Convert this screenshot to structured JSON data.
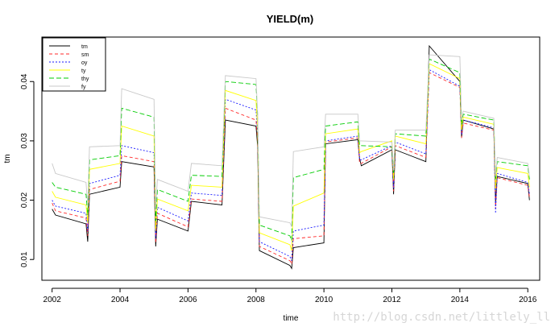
{
  "chart_data": {
    "type": "line",
    "title": "YIELD(m)",
    "xlabel": "time",
    "ylabel": "tm",
    "xlim": [
      2001.7,
      2016.35
    ],
    "ylim": [
      0.0065,
      0.0475
    ],
    "x_ticks": [
      2002,
      2004,
      2006,
      2008,
      2010,
      2012,
      2014,
      2016
    ],
    "y_ticks": [
      0.01,
      0.02,
      0.03,
      0.04
    ],
    "legend_position": "top-left",
    "grid": false,
    "series": [
      {
        "name": "tm",
        "color": "#000000",
        "dash": "",
        "values": [
          [
            2002.0,
            0.0185
          ],
          [
            2002.1,
            0.0175
          ],
          [
            2003.0,
            0.016
          ],
          [
            2003.05,
            0.013
          ],
          [
            2003.1,
            0.021
          ],
          [
            2004.0,
            0.0222
          ],
          [
            2004.05,
            0.0265
          ],
          [
            2005.0,
            0.0256
          ],
          [
            2005.05,
            0.0122
          ],
          [
            2005.1,
            0.0168
          ],
          [
            2006.0,
            0.0148
          ],
          [
            2006.1,
            0.0198
          ],
          [
            2007.0,
            0.0192
          ],
          [
            2007.1,
            0.0335
          ],
          [
            2008.0,
            0.0325
          ],
          [
            2008.05,
            0.029
          ],
          [
            2008.1,
            0.0115
          ],
          [
            2009.0,
            0.009
          ],
          [
            2009.05,
            0.0085
          ],
          [
            2009.1,
            0.012
          ],
          [
            2010.0,
            0.0128
          ],
          [
            2010.05,
            0.0295
          ],
          [
            2011.0,
            0.0302
          ],
          [
            2011.05,
            0.027
          ],
          [
            2011.1,
            0.0258
          ],
          [
            2012.0,
            0.0285
          ],
          [
            2012.05,
            0.021
          ],
          [
            2012.1,
            0.0285
          ],
          [
            2013.0,
            0.0265
          ],
          [
            2013.1,
            0.046
          ],
          [
            2014.0,
            0.04
          ],
          [
            2014.05,
            0.0305
          ],
          [
            2014.1,
            0.0335
          ],
          [
            2015.0,
            0.032
          ],
          [
            2015.05,
            0.0195
          ],
          [
            2015.1,
            0.024
          ],
          [
            2016.0,
            0.0228
          ],
          [
            2016.05,
            0.02
          ]
        ]
      },
      {
        "name": "sm",
        "color": "#ff2a2a",
        "dash": "4,3",
        "values": [
          [
            2002.0,
            0.0195
          ],
          [
            2002.1,
            0.0182
          ],
          [
            2003.0,
            0.017
          ],
          [
            2003.05,
            0.014
          ],
          [
            2003.1,
            0.0218
          ],
          [
            2004.0,
            0.0232
          ],
          [
            2004.05,
            0.0275
          ],
          [
            2005.0,
            0.0265
          ],
          [
            2005.05,
            0.0128
          ],
          [
            2005.1,
            0.0178
          ],
          [
            2006.0,
            0.0155
          ],
          [
            2006.1,
            0.0202
          ],
          [
            2007.0,
            0.0198
          ],
          [
            2007.1,
            0.0355
          ],
          [
            2008.0,
            0.0335
          ],
          [
            2008.05,
            0.03
          ],
          [
            2008.1,
            0.0122
          ],
          [
            2009.0,
            0.0098
          ],
          [
            2009.05,
            0.0092
          ],
          [
            2009.1,
            0.0135
          ],
          [
            2010.0,
            0.014
          ],
          [
            2010.05,
            0.0298
          ],
          [
            2011.0,
            0.0305
          ],
          [
            2011.05,
            0.0262
          ],
          [
            2011.1,
            0.0262
          ],
          [
            2012.0,
            0.029
          ],
          [
            2012.05,
            0.0215
          ],
          [
            2012.1,
            0.0292
          ],
          [
            2013.0,
            0.0272
          ],
          [
            2013.1,
            0.0415
          ],
          [
            2014.0,
            0.039
          ],
          [
            2014.05,
            0.0305
          ],
          [
            2014.1,
            0.033
          ],
          [
            2015.0,
            0.0318
          ],
          [
            2015.05,
            0.0185
          ],
          [
            2015.1,
            0.0238
          ],
          [
            2016.0,
            0.0225
          ],
          [
            2016.05,
            0.0205
          ]
        ]
      },
      {
        "name": "oy",
        "color": "#1a1aff",
        "dash": "2,2",
        "values": [
          [
            2002.0,
            0.02
          ],
          [
            2002.1,
            0.019
          ],
          [
            2003.0,
            0.0178
          ],
          [
            2003.05,
            0.0148
          ],
          [
            2003.1,
            0.0228
          ],
          [
            2004.0,
            0.0242
          ],
          [
            2004.05,
            0.0292
          ],
          [
            2005.0,
            0.028
          ],
          [
            2005.05,
            0.0135
          ],
          [
            2005.1,
            0.0188
          ],
          [
            2006.0,
            0.0165
          ],
          [
            2006.1,
            0.0212
          ],
          [
            2007.0,
            0.0208
          ],
          [
            2007.1,
            0.037
          ],
          [
            2008.0,
            0.0352
          ],
          [
            2008.05,
            0.031
          ],
          [
            2008.1,
            0.013
          ],
          [
            2009.0,
            0.0105
          ],
          [
            2009.05,
            0.0098
          ],
          [
            2009.1,
            0.0148
          ],
          [
            2010.0,
            0.0158
          ],
          [
            2010.05,
            0.03
          ],
          [
            2011.0,
            0.0308
          ],
          [
            2011.05,
            0.0268
          ],
          [
            2011.1,
            0.0268
          ],
          [
            2012.0,
            0.0292
          ],
          [
            2012.05,
            0.022
          ],
          [
            2012.1,
            0.0298
          ],
          [
            2013.0,
            0.0278
          ],
          [
            2013.1,
            0.042
          ],
          [
            2014.0,
            0.0392
          ],
          [
            2014.05,
            0.031
          ],
          [
            2014.1,
            0.0335
          ],
          [
            2015.0,
            0.0322
          ],
          [
            2015.05,
            0.0178
          ],
          [
            2015.1,
            0.0245
          ],
          [
            2016.0,
            0.023
          ],
          [
            2016.05,
            0.021
          ]
        ]
      },
      {
        "name": "ty",
        "color": "#ffff00",
        "dash": "",
        "values": [
          [
            2002.0,
            0.0215
          ],
          [
            2002.1,
            0.0205
          ],
          [
            2003.0,
            0.0192
          ],
          [
            2003.05,
            0.0162
          ],
          [
            2003.1,
            0.0252
          ],
          [
            2004.0,
            0.0262
          ],
          [
            2004.05,
            0.0325
          ],
          [
            2005.0,
            0.0308
          ],
          [
            2005.05,
            0.015
          ],
          [
            2005.1,
            0.0202
          ],
          [
            2006.0,
            0.0182
          ],
          [
            2006.1,
            0.0225
          ],
          [
            2007.0,
            0.0222
          ],
          [
            2007.1,
            0.0385
          ],
          [
            2008.0,
            0.0368
          ],
          [
            2008.05,
            0.032
          ],
          [
            2008.1,
            0.0145
          ],
          [
            2009.0,
            0.0125
          ],
          [
            2009.05,
            0.0115
          ],
          [
            2009.1,
            0.019
          ],
          [
            2010.0,
            0.0212
          ],
          [
            2010.05,
            0.0312
          ],
          [
            2011.0,
            0.032
          ],
          [
            2011.05,
            0.028
          ],
          [
            2011.1,
            0.0282
          ],
          [
            2012.0,
            0.03
          ],
          [
            2012.05,
            0.0235
          ],
          [
            2012.1,
            0.0308
          ],
          [
            2013.0,
            0.0295
          ],
          [
            2013.1,
            0.043
          ],
          [
            2014.0,
            0.0405
          ],
          [
            2014.05,
            0.0318
          ],
          [
            2014.1,
            0.034
          ],
          [
            2015.0,
            0.0328
          ],
          [
            2015.05,
            0.022
          ],
          [
            2015.1,
            0.0255
          ],
          [
            2016.0,
            0.0245
          ],
          [
            2016.05,
            0.0222
          ]
        ]
      },
      {
        "name": "thy",
        "color": "#00cc00",
        "dash": "6,3",
        "values": [
          [
            2002.0,
            0.023
          ],
          [
            2002.1,
            0.0222
          ],
          [
            2003.0,
            0.021
          ],
          [
            2003.05,
            0.0175
          ],
          [
            2003.1,
            0.0268
          ],
          [
            2004.0,
            0.0275
          ],
          [
            2004.05,
            0.0355
          ],
          [
            2005.0,
            0.034
          ],
          [
            2005.05,
            0.0165
          ],
          [
            2005.1,
            0.0218
          ],
          [
            2006.0,
            0.0198
          ],
          [
            2006.1,
            0.0242
          ],
          [
            2007.0,
            0.024
          ],
          [
            2007.1,
            0.04
          ],
          [
            2008.0,
            0.0395
          ],
          [
            2008.05,
            0.034
          ],
          [
            2008.1,
            0.0158
          ],
          [
            2009.0,
            0.014
          ],
          [
            2009.05,
            0.0132
          ],
          [
            2009.1,
            0.0238
          ],
          [
            2010.0,
            0.0252
          ],
          [
            2010.05,
            0.0325
          ],
          [
            2011.0,
            0.0332
          ],
          [
            2011.05,
            0.0292
          ],
          [
            2011.1,
            0.0292
          ],
          [
            2012.0,
            0.029
          ],
          [
            2012.05,
            0.0245
          ],
          [
            2012.1,
            0.0312
          ],
          [
            2013.0,
            0.0308
          ],
          [
            2013.1,
            0.0438
          ],
          [
            2014.0,
            0.0415
          ],
          [
            2014.05,
            0.0328
          ],
          [
            2014.1,
            0.0345
          ],
          [
            2015.0,
            0.0335
          ],
          [
            2015.05,
            0.0235
          ],
          [
            2015.1,
            0.0265
          ],
          [
            2016.0,
            0.0258
          ],
          [
            2016.05,
            0.0235
          ]
        ]
      },
      {
        "name": "fy",
        "color": "#c8c8c8",
        "dash": "",
        "values": [
          [
            2002.0,
            0.0262
          ],
          [
            2002.1,
            0.0245
          ],
          [
            2003.0,
            0.023
          ],
          [
            2003.05,
            0.019
          ],
          [
            2003.1,
            0.029
          ],
          [
            2004.0,
            0.0292
          ],
          [
            2004.05,
            0.0388
          ],
          [
            2005.0,
            0.037
          ],
          [
            2005.05,
            0.0185
          ],
          [
            2005.1,
            0.0235
          ],
          [
            2006.0,
            0.0215
          ],
          [
            2006.1,
            0.0262
          ],
          [
            2007.0,
            0.0258
          ],
          [
            2007.1,
            0.041
          ],
          [
            2008.0,
            0.0405
          ],
          [
            2008.05,
            0.0345
          ],
          [
            2008.1,
            0.0172
          ],
          [
            2009.0,
            0.0162
          ],
          [
            2009.05,
            0.0155
          ],
          [
            2009.1,
            0.0282
          ],
          [
            2010.0,
            0.029
          ],
          [
            2010.05,
            0.0345
          ],
          [
            2011.0,
            0.0345
          ],
          [
            2011.05,
            0.03
          ],
          [
            2011.1,
            0.03
          ],
          [
            2012.0,
            0.0298
          ],
          [
            2012.05,
            0.025
          ],
          [
            2012.1,
            0.0318
          ],
          [
            2013.0,
            0.0318
          ],
          [
            2013.1,
            0.0445
          ],
          [
            2014.0,
            0.0442
          ],
          [
            2014.05,
            0.0335
          ],
          [
            2014.1,
            0.035
          ],
          [
            2015.0,
            0.0338
          ],
          [
            2015.05,
            0.024
          ],
          [
            2015.1,
            0.0272
          ],
          [
            2016.0,
            0.0262
          ],
          [
            2016.05,
            0.024
          ]
        ]
      }
    ]
  },
  "watermark": "http://blog.csdn.net/littlely_ll"
}
